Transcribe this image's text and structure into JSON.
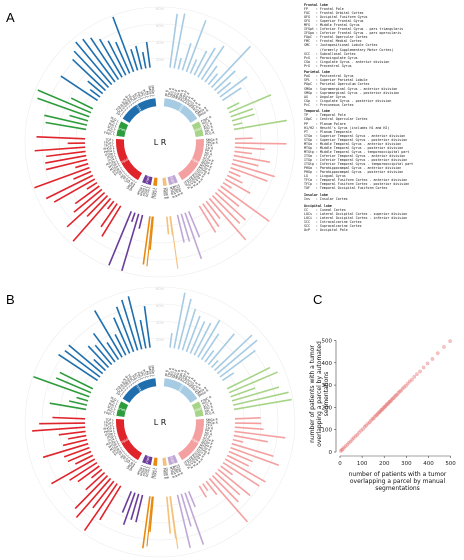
{
  "panels": {
    "a": "A",
    "b": "B",
    "c": "C"
  },
  "circle": {
    "center_label": "L R",
    "lobes": [
      "Frontal",
      "Parietal",
      "Temporal",
      "Occipital",
      "Insular"
    ],
    "lobe_colors": {
      "frontal_left": "#1f6fae",
      "frontal_right": "#a6cbe3",
      "parietal_left": "#2c9c3c",
      "parietal_right": "#a7d489",
      "temporal_left": "#e0242b",
      "temporal_right": "#f4a0a0",
      "occipital_left": "#6a3d9a",
      "occipital_right": "#c0a8d6",
      "insular_left": "#e88a10",
      "insular_right": "#f5c07a"
    },
    "ring_ticks": [
      "80%",
      "60%",
      "40%",
      "20%"
    ],
    "parcels_left": [
      "FP L",
      "FOC L",
      "OFG L",
      "SFG L",
      "MFG L",
      "IFGpt L",
      "IFGpo L",
      "FOpC L",
      "PrG L",
      "SCC L",
      "PoG L",
      "SPL L",
      "PCG L",
      "AG L",
      "SMGa L",
      "SMGp L",
      "TP L",
      "CO L",
      "PP L",
      "HG L",
      "PT L",
      "STGa L",
      "STGp L",
      "MTGa L",
      "MTGp L",
      "MTGtp L",
      "ITGa L",
      "ITGp L",
      "ITGtp L",
      "PHGa L",
      "PHGp L",
      "TFCa L",
      "TFCp L",
      "TOF L",
      "LG L",
      "ICC L",
      "SCC L",
      "LOCs L",
      "LOCi L",
      "OP L",
      "CC L",
      "Ins L"
    ],
    "parcels_right": [
      "FP R",
      "FOC R",
      "OFG R",
      "SFG R",
      "MFG R",
      "IFGpt R",
      "IFGpo R",
      "FOpC R",
      "PrG R",
      "SCC R",
      "PoG R",
      "SPL R",
      "PCG R",
      "AG R",
      "SMGa R",
      "SMGp R",
      "TP R",
      "CO R",
      "PP R",
      "HG R",
      "PT R",
      "STGa R",
      "STGp R",
      "MTGa R",
      "MTGp R",
      "MTGtp R",
      "ITGa R",
      "ITGp R",
      "ITGtp R",
      "PHGa R",
      "PHGp R",
      "TFCa R",
      "TFCp R",
      "TOF R",
      "LG R",
      "ICC R",
      "SCC R",
      "LOCs R",
      "LOCi R",
      "OP R",
      "CC R",
      "Ins R"
    ]
  },
  "legend": [
    {
      "title": "Frontal lobe",
      "rows": [
        "FP    : Frontal Pole",
        "FOC   : Frontal Orbital Cortex",
        "OFG   : Occipital Fusiform Gyrus",
        "SFG   : Superior Frontal Gyrus",
        "MFG   : Middle Frontal Gyrus",
        "IFGpt : Inferior Frontal Gyrus - pars triangularis",
        "IFGpo : Inferior Frontal Gyrus - pars opercularis",
        "FOpC  : Frontal Opercular Cortex",
        "FMC   : Frontal Medial Cortex",
        "SMC   : Juxtapositional Lobule Cortex",
        "        (formerly Supplementary Motor Cortex)",
        "SCC   : Subcallosal Cortex",
        "PcG   : Paracingulate Gyrus",
        "CGa   : Cingulate Gyrus - anterior division",
        "PrG   : Precentral Gyrus"
      ]
    },
    {
      "title": "Parietal lobe",
      "rows": [
        "PoG   : Postcentral Gyrus",
        "SPL   : Superior Parietal Lobule",
        "POpC  : Parietal Operculum Cortex",
        "SMGa  : Supramarginal Gyrus - anterior division",
        "SMGp  : Supramarginal Gyrus - posterior division",
        "AG    : Angular Gyrus",
        "CGp   : Cingulate Gyrus - posterior division",
        "PcC   : Precuneous Cortex"
      ]
    },
    {
      "title": "Temporal lobe",
      "rows": [
        "TP    : Temporal Pole",
        "COpC  : Central Opercular Cortex",
        "PP    : Planum Polare",
        "H1/H2 : Heschl's Gyrus (includes H1 and H2)",
        "PT    : Planum Temporale",
        "STGa  : Superior Temporal Gyrus - anterior division",
        "STGp  : Superior Temporal Gyrus - posterior division",
        "MTGa  : Middle Temporal Gyrus - anterior division",
        "MTGp  : Middle Temporal Gyrus - posterior division",
        "MTGtp : Middle Temporal Gyrus - temporooccipital part",
        "ITGa  : Inferior Temporal Gyrus - anterior division",
        "ITGp  : Inferior Temporal Gyrus - posterior division",
        "ITGtp : Inferior Temporal Gyrus - temporooccipital part",
        "PHGa  : Parahippocampal Gyrus - anterior division",
        "PHGp  : Parahippocampal Gyrus - posterior division",
        "LG    : Lingual Gyrus",
        "TFCa  : Temporal Fusiform Cortex - anterior division",
        "TFCp  : Temporal Fusiform Cortex - posterior division",
        "TOF   : Temporal Occipital Fusiform Cortex"
      ]
    },
    {
      "title": "Insular lobe",
      "rows": [
        "Ins   : Insular Cortex"
      ]
    },
    {
      "title": "Occipital lobe",
      "rows": [
        "CC    : Cuneal Cortex",
        "LOCs  : Lateral Occipital Cortex - superior division",
        "LOCi  : Lateral Occipital Cortex - inferior division",
        "ICC   : Intracalcarine Cortex",
        "SCC   : Supracalcarine Cortex",
        "OcP   : Occipital Pole"
      ]
    }
  ],
  "chart_data": {
    "type": "scatter",
    "title": "",
    "xlabel": "number of patients with a tumor overlapping a parcel by manual segmentations",
    "ylabel": "number of patients with a tumor overlapping a parcel by automated segmentations",
    "xlim": [
      0,
      520
    ],
    "ylim": [
      0,
      520
    ],
    "xticks": [
      0,
      100,
      200,
      300,
      400,
      500
    ],
    "yticks": [
      0,
      100,
      200,
      300,
      400,
      500
    ],
    "grid": false,
    "color": "#e77a7a",
    "x": [
      4,
      8,
      12,
      18,
      25,
      33,
      40,
      48,
      55,
      62,
      70,
      78,
      86,
      95,
      104,
      112,
      118,
      126,
      134,
      140,
      147,
      152,
      158,
      163,
      168,
      172,
      177,
      181,
      185,
      189,
      193,
      197,
      201,
      205,
      209,
      213,
      217,
      221,
      225,
      229,
      233,
      238,
      243,
      248,
      253,
      258,
      264,
      270,
      276,
      283,
      290,
      298,
      306,
      315,
      325,
      336,
      348,
      362,
      378,
      396,
      418,
      442,
      470,
      498
    ],
    "y": [
      5,
      9,
      13,
      19,
      26,
      33,
      41,
      47,
      56,
      63,
      71,
      77,
      87,
      96,
      103,
      113,
      119,
      127,
      133,
      141,
      148,
      151,
      159,
      164,
      167,
      173,
      178,
      180,
      186,
      190,
      192,
      198,
      202,
      204,
      210,
      214,
      216,
      222,
      226,
      228,
      234,
      239,
      242,
      249,
      254,
      257,
      265,
      271,
      275,
      284,
      291,
      297,
      307,
      316,
      324,
      337,
      349,
      361,
      379,
      397,
      417,
      443,
      471,
      497
    ]
  }
}
